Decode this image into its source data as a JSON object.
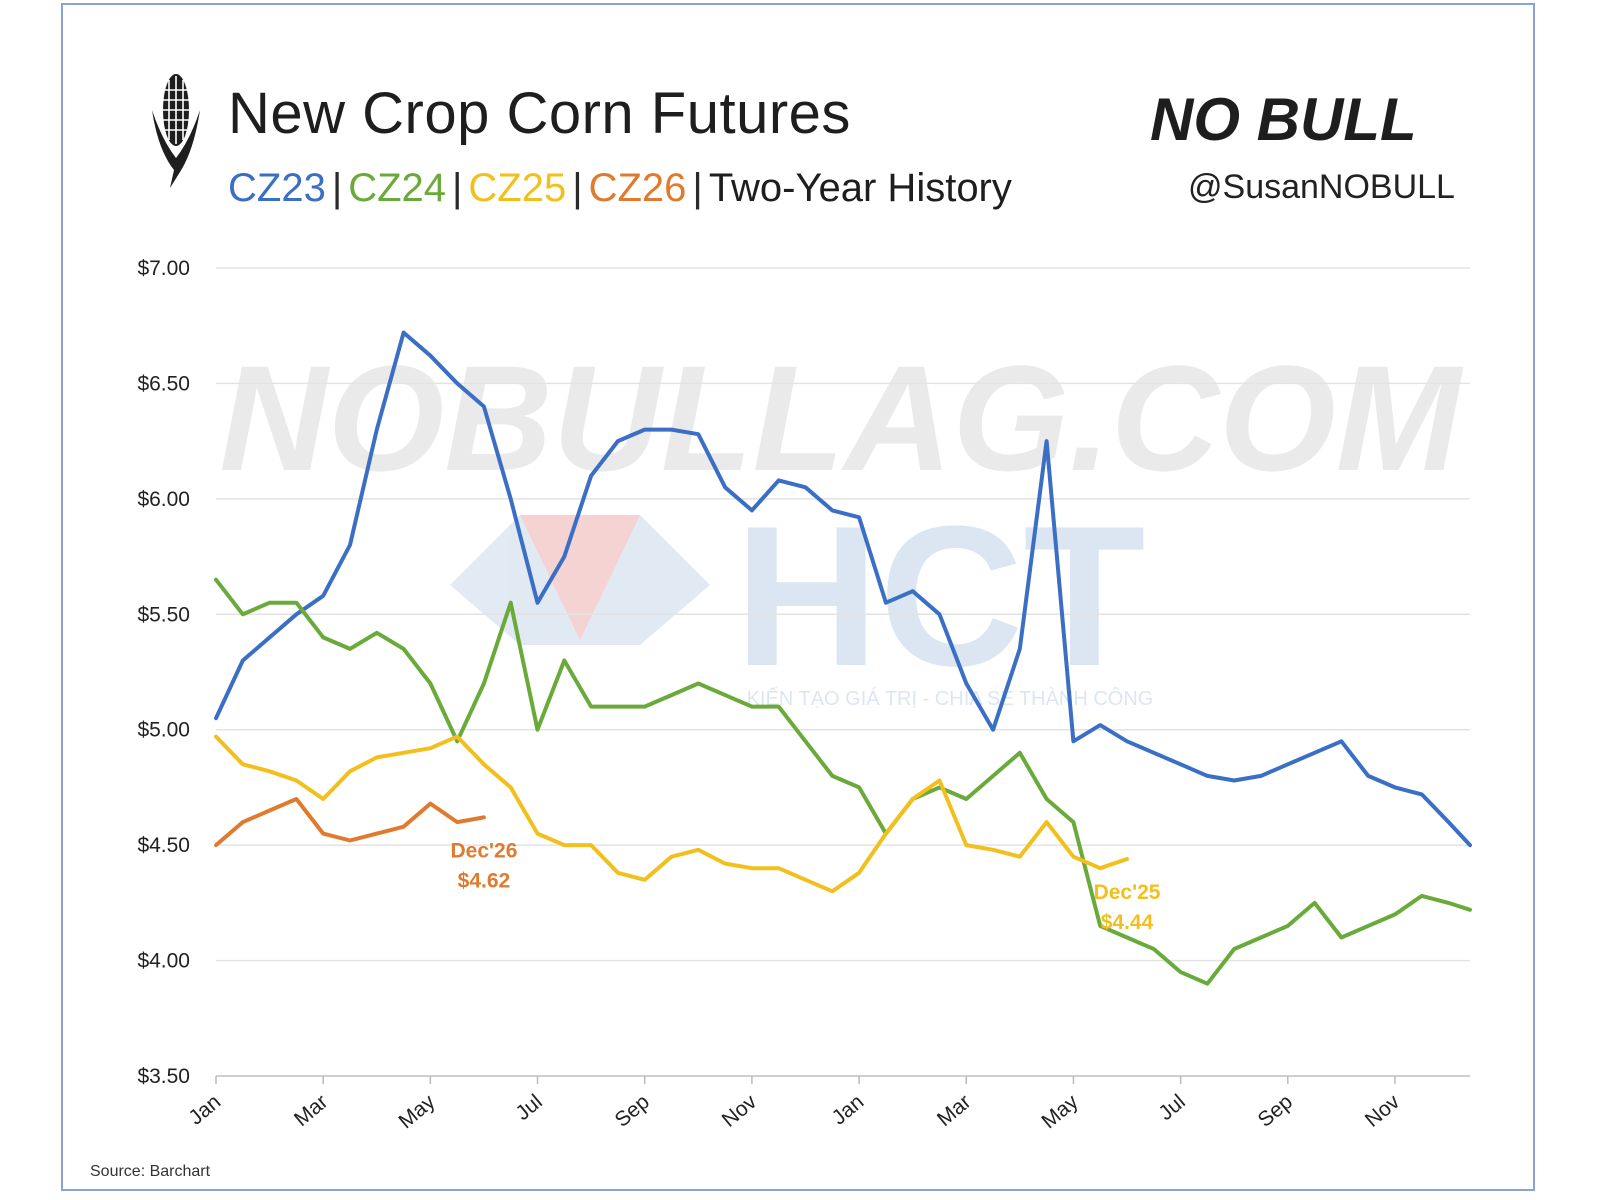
{
  "header": {
    "title": "New Crop Corn Futures",
    "subtitle_parts": [
      {
        "text": "CZ23",
        "color": "#3b6ec5"
      },
      {
        "text": "CZ24",
        "color": "#6aaa3a"
      },
      {
        "text": "CZ25",
        "color": "#f2c01d"
      },
      {
        "text": "CZ26",
        "color": "#e07a2e"
      }
    ],
    "subtitle_suffix": "Two-Year History",
    "brand_text": "NO BULL",
    "handle": "@SusanNOBULL"
  },
  "watermarks": {
    "site": "NOBULLAG.COM",
    "logo": "HCT",
    "tagline": "KIẾN TẠO GIÁ TRỊ - CHIA SẺ THÀNH CÔNG"
  },
  "footer": {
    "source": "Source: Barchart"
  },
  "chart_data": {
    "type": "line",
    "x_tick_labels": [
      "Jan",
      "Mar",
      "May",
      "Jul",
      "Sep",
      "Nov",
      "Jan",
      "Mar",
      "May",
      "Jul",
      "Sep",
      "Nov"
    ],
    "xlim": [
      0,
      23.4
    ],
    "ylim": [
      3.5,
      7.0
    ],
    "y_ticks": [
      3.5,
      4.0,
      4.5,
      5.0,
      5.5,
      6.0,
      6.5,
      7.0
    ],
    "y_tick_labels": [
      "$3.50",
      "$4.00",
      "$4.50",
      "$5.00",
      "$5.50",
      "$6.00",
      "$6.50",
      "$7.00"
    ],
    "grid": true,
    "series": [
      {
        "name": "CZ23",
        "color": "#3b6ec5",
        "x": [
          0,
          0.5,
          1,
          1.5,
          2,
          2.5,
          3,
          3.5,
          4,
          4.5,
          5,
          5.5,
          6,
          6.5,
          7,
          7.5,
          8,
          8.5,
          9,
          9.5,
          10,
          10.5,
          11,
          11.5,
          12,
          12.5,
          13,
          13.5,
          14,
          14.5,
          15,
          15.5,
          16,
          16.5,
          17,
          17.5,
          18,
          18.5,
          19,
          19.5,
          20,
          20.5,
          21,
          21.5,
          22,
          22.5,
          23,
          23.4
        ],
        "y": [
          5.05,
          5.3,
          5.4,
          5.5,
          5.58,
          5.8,
          6.3,
          6.72,
          6.62,
          6.5,
          6.4,
          6.0,
          5.55,
          5.75,
          6.1,
          6.25,
          6.3,
          6.3,
          6.28,
          6.05,
          5.95,
          6.08,
          6.05,
          5.95,
          5.92,
          5.55,
          5.6,
          5.5,
          5.2,
          5.0,
          5.35,
          6.25,
          4.95,
          5.02,
          4.95,
          4.9,
          4.85,
          4.8,
          4.78,
          4.8,
          4.85,
          4.9,
          4.95,
          4.8,
          4.75,
          4.72,
          4.6,
          4.5
        ]
      },
      {
        "name": "CZ24",
        "color": "#6aaa3a",
        "x": [
          0,
          0.5,
          1,
          1.5,
          2,
          2.5,
          3,
          3.5,
          4,
          4.5,
          5,
          5.5,
          6,
          6.5,
          7,
          7.5,
          8,
          8.5,
          9,
          9.5,
          10,
          10.5,
          11,
          11.5,
          12,
          12.5,
          13,
          13.5,
          14,
          14.5,
          15,
          15.5,
          16,
          16.5,
          17,
          17.5,
          18,
          18.5,
          19,
          19.5,
          20,
          20.5,
          21,
          21.5,
          22,
          22.5,
          23,
          23.4
        ],
        "y": [
          5.65,
          5.5,
          5.55,
          5.55,
          5.4,
          5.35,
          5.42,
          5.35,
          5.2,
          4.95,
          5.2,
          5.55,
          5.0,
          5.3,
          5.1,
          5.1,
          5.1,
          5.15,
          5.2,
          5.15,
          5.1,
          5.1,
          4.95,
          4.8,
          4.75,
          4.55,
          4.7,
          4.75,
          4.7,
          4.8,
          4.9,
          4.7,
          4.6,
          4.15,
          4.1,
          4.05,
          3.95,
          3.9,
          4.05,
          4.1,
          4.15,
          4.25,
          4.1,
          4.15,
          4.2,
          4.28,
          4.25,
          4.22
        ]
      },
      {
        "name": "CZ25",
        "color": "#f2c01d",
        "x": [
          0,
          0.5,
          1,
          1.5,
          2,
          2.5,
          3,
          3.5,
          4,
          4.5,
          5,
          5.5,
          6,
          6.5,
          7,
          7.5,
          8,
          8.5,
          9,
          9.5,
          10,
          10.5,
          11,
          11.5,
          12,
          12.5,
          13,
          13.5,
          14,
          14.5,
          15,
          15.5,
          16,
          16.5,
          17
        ],
        "y": [
          4.97,
          4.85,
          4.82,
          4.78,
          4.7,
          4.82,
          4.88,
          4.9,
          4.92,
          4.97,
          4.85,
          4.75,
          4.55,
          4.5,
          4.5,
          4.38,
          4.35,
          4.45,
          4.48,
          4.42,
          4.4,
          4.4,
          4.35,
          4.3,
          4.38,
          4.55,
          4.7,
          4.78,
          4.5,
          4.48,
          4.45,
          4.6,
          4.45,
          4.4,
          4.44
        ]
      },
      {
        "name": "CZ26",
        "color": "#e07a2e",
        "x": [
          0,
          0.5,
          1,
          1.5,
          2,
          2.5,
          3,
          3.5,
          4,
          4.5,
          5
        ],
        "y": [
          4.5,
          4.6,
          4.65,
          4.7,
          4.55,
          4.52,
          4.55,
          4.58,
          4.68,
          4.6,
          4.62
        ]
      }
    ],
    "annotations": [
      {
        "series": "CZ26",
        "lines": [
          "Dec'26",
          "$4.62"
        ],
        "color": "#e07a2e"
      },
      {
        "series": "CZ25",
        "lines": [
          "Dec'25",
          "$4.44"
        ],
        "color": "#f2c01d"
      }
    ]
  }
}
